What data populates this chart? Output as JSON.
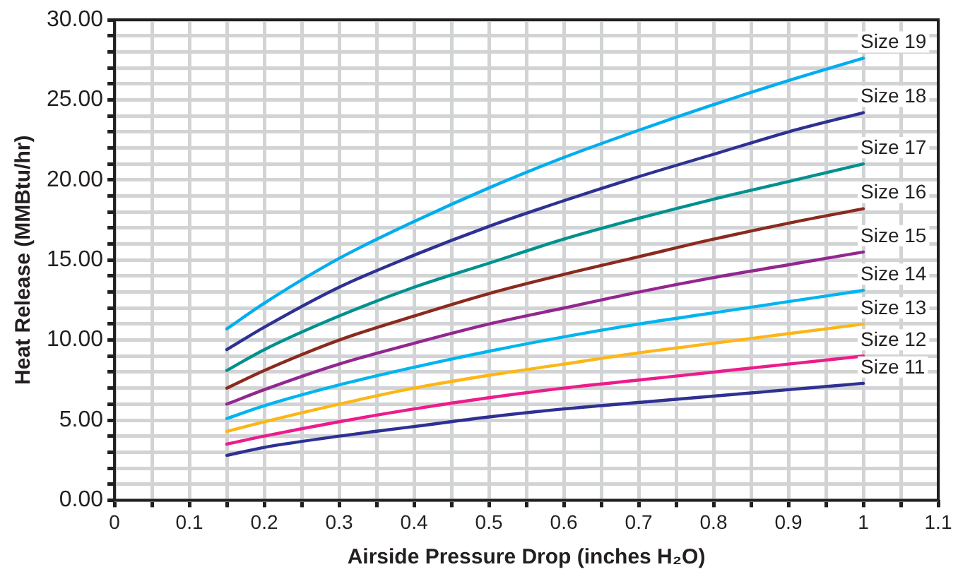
{
  "chart_data": {
    "type": "line",
    "xlabel": "Airside Pressure Drop (inches H₂O)",
    "ylabel": "Heat Release (MMBtu/hr)",
    "x": [
      0.15,
      0.2,
      0.3,
      0.4,
      0.5,
      0.6,
      0.7,
      0.8,
      0.9,
      1.0
    ],
    "series": [
      {
        "name": "Size 19",
        "color": "#00aeef",
        "values": [
          10.7,
          12.3,
          15.1,
          17.4,
          19.5,
          21.4,
          23.1,
          24.7,
          26.2,
          27.6
        ]
      },
      {
        "name": "Size 18",
        "color": "#2e3192",
        "values": [
          9.4,
          10.8,
          13.3,
          15.3,
          17.1,
          18.7,
          20.2,
          21.6,
          23.0,
          24.2
        ]
      },
      {
        "name": "Size 17",
        "color": "#00918f",
        "values": [
          8.1,
          9.4,
          11.5,
          13.3,
          14.8,
          16.3,
          17.6,
          18.8,
          19.9,
          21.0
        ]
      },
      {
        "name": "Size 16",
        "color": "#8b2a1e",
        "values": [
          7.0,
          8.1,
          10.0,
          11.5,
          12.9,
          14.1,
          15.2,
          16.3,
          17.3,
          18.2
        ]
      },
      {
        "name": "Size 15",
        "color": "#92278f",
        "values": [
          6.0,
          6.9,
          8.5,
          9.8,
          11.0,
          12.0,
          13.0,
          13.9,
          14.7,
          15.5
        ]
      },
      {
        "name": "Size 14",
        "color": "#00b5ef",
        "values": [
          5.1,
          5.9,
          7.2,
          8.3,
          9.3,
          10.2,
          11.0,
          11.7,
          12.4,
          13.1
        ]
      },
      {
        "name": "Size 13",
        "color": "#fbb716",
        "values": [
          4.3,
          4.9,
          6.0,
          7.0,
          7.8,
          8.5,
          9.2,
          9.8,
          10.4,
          11.0
        ]
      },
      {
        "name": "Size 12",
        "color": "#ec1c8c",
        "values": [
          3.5,
          4.0,
          4.9,
          5.7,
          6.4,
          7.0,
          7.5,
          8.0,
          8.5,
          9.0
        ]
      },
      {
        "name": "Size 11",
        "color": "#2e3192",
        "values": [
          2.8,
          3.3,
          4.0,
          4.6,
          5.2,
          5.7,
          6.1,
          6.5,
          6.9,
          7.3
        ]
      }
    ],
    "xlim": [
      0,
      1.1
    ],
    "xticks": [
      0,
      {
        "value": 0.05,
        "label": null
      },
      0.1,
      {
        "value": 0.15,
        "label": null
      },
      0.2,
      {
        "value": 0.25,
        "label": null
      },
      0.3,
      {
        "value": 0.35,
        "label": null
      },
      0.4,
      {
        "value": 0.45,
        "label": null
      },
      0.5,
      {
        "value": 0.55,
        "label": null
      },
      0.6,
      {
        "value": 0.65,
        "label": null
      },
      0.7,
      {
        "value": 0.75,
        "label": null
      },
      0.8,
      {
        "value": 0.85,
        "label": null
      },
      0.9,
      {
        "value": 0.95,
        "label": null
      },
      1,
      {
        "value": 1.05,
        "label": null
      },
      1.1
    ],
    "ylim": [
      0,
      30
    ],
    "yticks": [
      {
        "value": 0,
        "label": "0.00"
      },
      {
        "value": 1,
        "label": null
      },
      {
        "value": 2,
        "label": null
      },
      {
        "value": 3,
        "label": null
      },
      {
        "value": 4,
        "label": null
      },
      {
        "value": 5,
        "label": "5.00"
      },
      {
        "value": 6,
        "label": null
      },
      {
        "value": 7,
        "label": null
      },
      {
        "value": 8,
        "label": null
      },
      {
        "value": 9,
        "label": null
      },
      {
        "value": 10,
        "label": "10.00"
      },
      {
        "value": 11,
        "label": null
      },
      {
        "value": 12,
        "label": null
      },
      {
        "value": 13,
        "label": null
      },
      {
        "value": 14,
        "label": null
      },
      {
        "value": 15,
        "label": "15.00"
      },
      {
        "value": 16,
        "label": null
      },
      {
        "value": 17,
        "label": null
      },
      {
        "value": 18,
        "label": null
      },
      {
        "value": 19,
        "label": null
      },
      {
        "value": 20,
        "label": "20.00"
      },
      {
        "value": 21,
        "label": null
      },
      {
        "value": 22,
        "label": null
      },
      {
        "value": 23,
        "label": null
      },
      {
        "value": 24,
        "label": null
      },
      {
        "value": 25,
        "label": "25.00"
      },
      {
        "value": 26,
        "label": null
      },
      {
        "value": 27,
        "label": null
      },
      {
        "value": 28,
        "label": null
      },
      {
        "value": 29,
        "label": null
      },
      {
        "value": 30,
        "label": "30.00"
      }
    ],
    "grid": true,
    "legend": false,
    "marker": "none",
    "line_style": "solid"
  }
}
